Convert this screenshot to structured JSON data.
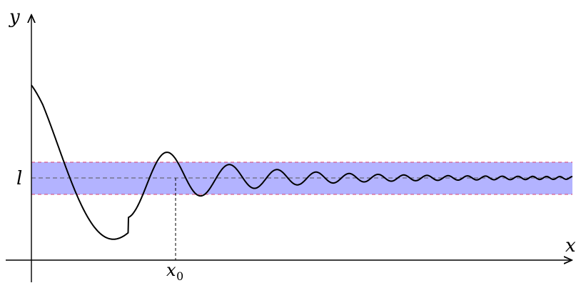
{
  "axes": {
    "x_label": "x",
    "y_label": "y"
  },
  "limit": {
    "label": "l",
    "band_color": "#b3b3ff",
    "band_edge_color": "#d94070",
    "center_line_color": "#555555"
  },
  "x0": {
    "label_base": "x",
    "label_sub": "0"
  },
  "curve": {
    "color": "#000000",
    "description_shape": "damped oscillation converging to l"
  }
}
